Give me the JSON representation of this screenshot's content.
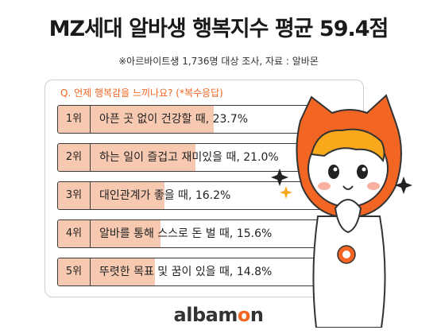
{
  "title": "MZ세대 알바생 행복지수 평균 59.4점",
  "subtitle": "※아르바이트생 1,736명 대상 조사, 자료 : 알바몬",
  "question": "Q. 언제 행복감을 느끼나요? (*복수응답)",
  "logo": {
    "part1": "albam",
    "part2": "o",
    "part3": "n"
  },
  "colors": {
    "accent": "#f26522",
    "bar": "#f7c9b1"
  },
  "chart_data": {
    "type": "bar",
    "title": "MZ세대 알바생 행복지수 평균 59.4점",
    "question": "Q. 언제 행복감을 느끼나요? (*복수응답)",
    "categories": [
      "1위",
      "2위",
      "3위",
      "4위",
      "5위"
    ],
    "labels": [
      "아픈 곳 없이 건강할 때, 23.7%",
      "하는 일이 즐겁고 재미있을 때, 21.0%",
      "대인관계가 좋을 때, 16.2%",
      "알바를 통해 스스로 돈 벌 때, 15.6%",
      "뚜렷한 목표 및 꿈이 있을 때, 14.8%"
    ],
    "values": [
      23.7,
      21.0,
      16.2,
      15.6,
      14.8
    ],
    "unit": "%",
    "xlim": [
      0,
      40
    ],
    "orientation": "horizontal"
  }
}
